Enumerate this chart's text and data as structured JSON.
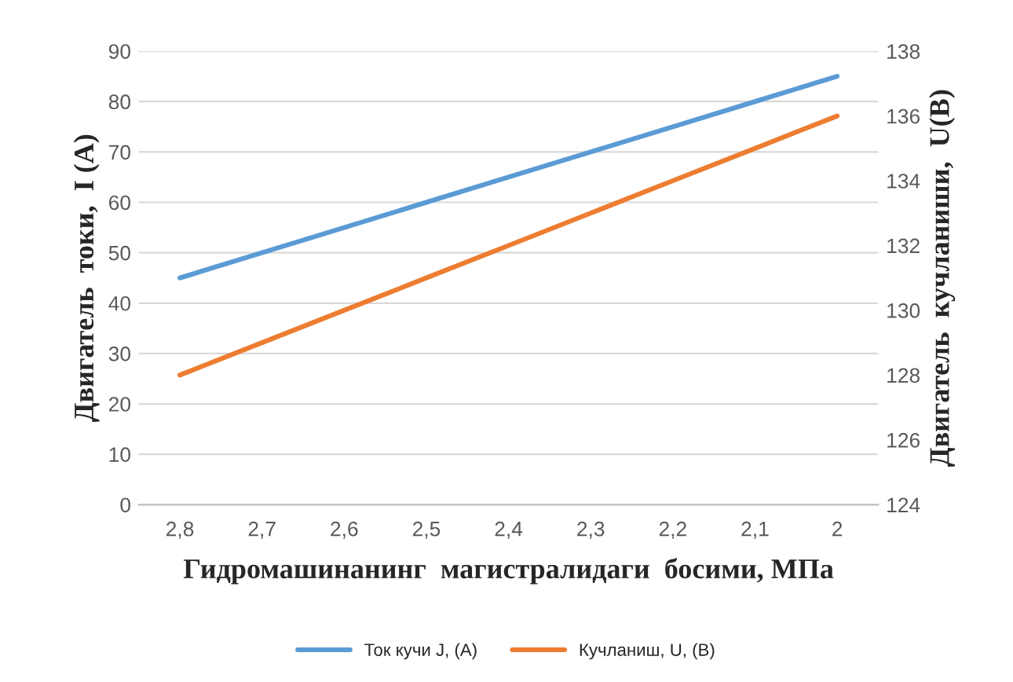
{
  "chart_data": {
    "type": "line",
    "xlabel": "Гидромашинанинг  магистралидаги  босими, МПа",
    "ylabel": "Двигатель  токи,  I (A)",
    "y2label": "Двигатель  кучланиши,  U(B)",
    "categories": [
      "2,8",
      "2,7",
      "2,6",
      "2,5",
      "2,4",
      "2,3",
      "2,2",
      "2,1",
      "2"
    ],
    "series": [
      {
        "name": "Ток кучи J, (A)",
        "color": "#5b9bd5",
        "values": [
          45,
          50,
          55,
          60,
          65,
          70,
          75,
          80,
          85
        ]
      },
      {
        "name": "Кучланиш, U, (B)",
        "color": "#ed7d31",
        "axis": "y2",
        "values": [
          128,
          129,
          130,
          131,
          132,
          133,
          134,
          135,
          136
        ]
      }
    ],
    "ylim": [
      0,
      90
    ],
    "yticks": [
      0,
      10,
      20,
      30,
      40,
      50,
      60,
      70,
      80,
      90
    ],
    "y2lim": [
      124,
      138
    ],
    "y2ticks": [
      124,
      126,
      128,
      130,
      132,
      134,
      136,
      138
    ],
    "grid": "y",
    "legend": "bottom",
    "marker": "none",
    "line_style": "solid"
  }
}
